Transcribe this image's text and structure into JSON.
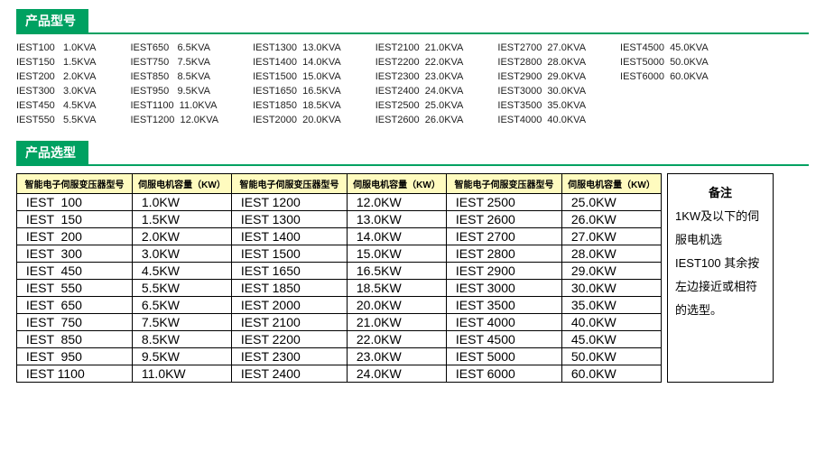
{
  "colors": {
    "accent": "#00a161",
    "rule": "#00a161",
    "header_bg": "#fffbbf",
    "text": "#222222"
  },
  "section1": {
    "title": "产品型号"
  },
  "section2": {
    "title": "产品选型"
  },
  "models": {
    "columns": [
      [
        {
          "name": "IEST100",
          "val": "1.0KVA"
        },
        {
          "name": "IEST150",
          "val": "1.5KVA"
        },
        {
          "name": "IEST200",
          "val": "2.0KVA"
        },
        {
          "name": "IEST300",
          "val": "3.0KVA"
        },
        {
          "name": "IEST450",
          "val": "4.5KVA"
        },
        {
          "name": "IEST550",
          "val": "5.5KVA"
        }
      ],
      [
        {
          "name": "IEST650",
          "val": "6.5KVA"
        },
        {
          "name": "IEST750",
          "val": "7.5KVA"
        },
        {
          "name": "IEST850",
          "val": "8.5KVA"
        },
        {
          "name": "IEST950",
          "val": "9.5KVA"
        },
        {
          "name": "IEST1100",
          "val": "11.0KVA"
        },
        {
          "name": "IEST1200",
          "val": "12.0KVA"
        }
      ],
      [
        {
          "name": "IEST1300",
          "val": "13.0KVA"
        },
        {
          "name": "IEST1400",
          "val": "14.0KVA"
        },
        {
          "name": "IEST1500",
          "val": "15.0KVA"
        },
        {
          "name": "IEST1650",
          "val": "16.5KVA"
        },
        {
          "name": "IEST1850",
          "val": "18.5KVA"
        },
        {
          "name": "IEST2000",
          "val": "20.0KVA"
        }
      ],
      [
        {
          "name": "IEST2100",
          "val": "21.0KVA"
        },
        {
          "name": "IEST2200",
          "val": "22.0KVA"
        },
        {
          "name": "IEST2300",
          "val": "23.0KVA"
        },
        {
          "name": "IEST2400",
          "val": "24.0KVA"
        },
        {
          "name": "IEST2500",
          "val": "25.0KVA"
        },
        {
          "name": "IEST2600",
          "val": "26.0KVA"
        }
      ],
      [
        {
          "name": "IEST2700",
          "val": "27.0KVA"
        },
        {
          "name": "IEST2800",
          "val": "28.0KVA"
        },
        {
          "name": "IEST2900",
          "val": "29.0KVA"
        },
        {
          "name": "IEST3000",
          "val": "30.0KVA"
        },
        {
          "name": "IEST3500",
          "val": "35.0KVA"
        },
        {
          "name": "IEST4000",
          "val": "40.0KVA"
        }
      ],
      [
        {
          "name": "IEST4500",
          "val": "45.0KVA"
        },
        {
          "name": "IEST5000",
          "val": "50.0KVA"
        },
        {
          "name": "IEST6000",
          "val": "60.0KVA"
        }
      ]
    ]
  },
  "selection": {
    "headers": {
      "model": "智能电子伺服变压器型号",
      "capacity": "伺服电机容量（KW）"
    },
    "col_widths": {
      "model": 128,
      "capacity": 110
    },
    "groups": [
      [
        {
          "m": "IEST  100",
          "c": "1.0KW"
        },
        {
          "m": "IEST  150",
          "c": "1.5KW"
        },
        {
          "m": "IEST  200",
          "c": "2.0KW"
        },
        {
          "m": "IEST  300",
          "c": "3.0KW"
        },
        {
          "m": "IEST  450",
          "c": "4.5KW"
        },
        {
          "m": "IEST  550",
          "c": "5.5KW"
        },
        {
          "m": "IEST  650",
          "c": "6.5KW"
        },
        {
          "m": "IEST  750",
          "c": "7.5KW"
        },
        {
          "m": "IEST  850",
          "c": "8.5KW"
        },
        {
          "m": "IEST  950",
          "c": "9.5KW"
        },
        {
          "m": "IEST 1100",
          "c": "11.0KW"
        }
      ],
      [
        {
          "m": "IEST 1200",
          "c": "12.0KW"
        },
        {
          "m": "IEST 1300",
          "c": "13.0KW"
        },
        {
          "m": "IEST 1400",
          "c": "14.0KW"
        },
        {
          "m": "IEST 1500",
          "c": "15.0KW"
        },
        {
          "m": "IEST 1650",
          "c": "16.5KW"
        },
        {
          "m": "IEST 1850",
          "c": "18.5KW"
        },
        {
          "m": "IEST 2000",
          "c": "20.0KW"
        },
        {
          "m": "IEST 2100",
          "c": "21.0KW"
        },
        {
          "m": "IEST 2200",
          "c": "22.0KW"
        },
        {
          "m": "IEST 2300",
          "c": "23.0KW"
        },
        {
          "m": "IEST 2400",
          "c": "24.0KW"
        }
      ],
      [
        {
          "m": "IEST 2500",
          "c": "25.0KW"
        },
        {
          "m": "IEST 2600",
          "c": "26.0KW"
        },
        {
          "m": "IEST 2700",
          "c": "27.0KW"
        },
        {
          "m": "IEST 2800",
          "c": "28.0KW"
        },
        {
          "m": "IEST 2900",
          "c": "29.0KW"
        },
        {
          "m": "IEST 3000",
          "c": "30.0KW"
        },
        {
          "m": "IEST 3500",
          "c": "35.0KW"
        },
        {
          "m": "IEST 4000",
          "c": "40.0KW"
        },
        {
          "m": "IEST 4500",
          "c": "45.0KW"
        },
        {
          "m": "IEST 5000",
          "c": "50.0KW"
        },
        {
          "m": "IEST 6000",
          "c": "60.0KW"
        }
      ]
    ]
  },
  "note": {
    "title": "备注",
    "body": "1KW及以下的伺服电机选IEST100 其余按左边接近或相符的选型。"
  }
}
